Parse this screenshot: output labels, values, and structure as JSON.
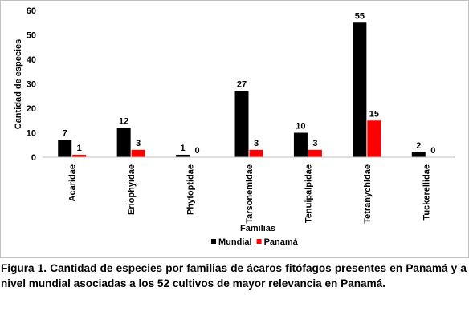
{
  "chart_data": {
    "type": "bar",
    "title": "",
    "xlabel": "Familias",
    "ylabel": "Cantidad de especies",
    "ylim": [
      0,
      60
    ],
    "yticks": [
      0,
      10,
      20,
      30,
      40,
      50,
      60
    ],
    "grid": false,
    "legend_position": "bottom",
    "categories": [
      "Acaridae",
      "Eriophyidae",
      "Phytoptidae",
      "Tarsonemidae",
      "Tenuipalpidae",
      "Tetranychidae",
      "Tuckerellidae"
    ],
    "series": [
      {
        "name": "Mundial",
        "color": "#000000",
        "values": [
          7,
          12,
          1,
          27,
          10,
          55,
          2
        ]
      },
      {
        "name": "Panamá",
        "color": "#ff0000",
        "values": [
          1,
          3,
          0,
          3,
          3,
          15,
          0
        ]
      }
    ]
  },
  "caption": "Figura 1. Cantidad de especies por familias de ácaros fitófagos presentes en Panamá y a nivel mundial asociadas a los 52 cultivos de mayor relevancia en Panamá."
}
